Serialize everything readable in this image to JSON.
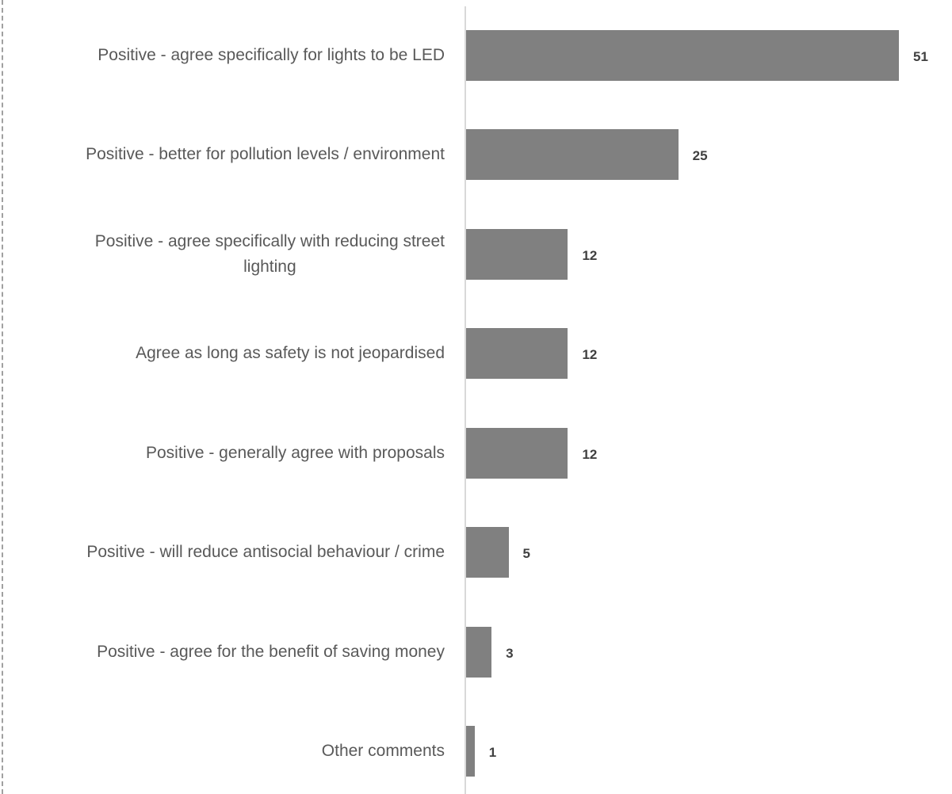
{
  "chart_data": {
    "type": "bar",
    "orientation": "horizontal",
    "categories": [
      "Positive - agree specifically for lights to be LED",
      "Positive - better for pollution levels / environment",
      "Positive - agree specifically with reducing street lighting",
      "Agree as long as safety is not jeopardised",
      "Positive - generally agree with proposals",
      "Positive - will reduce antisocial behaviour / crime",
      "Positive - agree for the benefit of saving money",
      "Other comments"
    ],
    "label_lines": [
      [
        "Positive - agree specifically for lights to be LED"
      ],
      [
        "Positive - better for pollution levels / environment"
      ],
      [
        "Positive - agree specifically with reducing street",
        "lighting"
      ],
      [
        "Agree as long as safety is not jeopardised"
      ],
      [
        "Positive - generally agree with proposals"
      ],
      [
        "Positive - will reduce antisocial behaviour / crime"
      ],
      [
        "Positive - agree for the benefit of saving money"
      ],
      [
        "Other comments"
      ]
    ],
    "values": [
      51,
      25,
      12,
      12,
      12,
      5,
      3,
      1
    ],
    "data_labels": [
      "51",
      "25",
      "12",
      "12",
      "12",
      "5",
      "3",
      "1"
    ],
    "xlim": [
      0,
      51
    ],
    "grid": false,
    "legend": "none",
    "bar_color": "#808080",
    "label_color": "#595959",
    "value_label_color": "#404040",
    "axis_color": "#d9d9d9"
  }
}
